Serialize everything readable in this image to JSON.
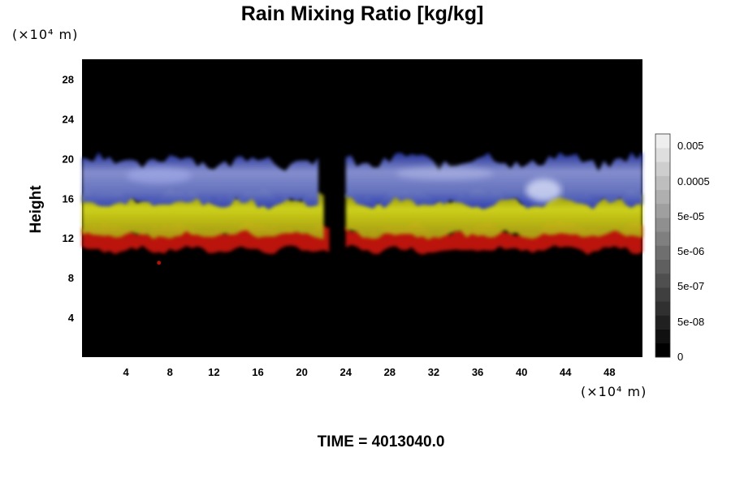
{
  "chart_data": {
    "type": "heatmap",
    "title": "Rain Mixing Ratio [kg/kg]",
    "ylabel": "Height",
    "y_unit": "(×10⁴ m)",
    "x_unit": "(×10⁴ m)",
    "xlim": [
      0,
      51
    ],
    "ylim": [
      0,
      30
    ],
    "x_ticks": [
      4,
      8,
      12,
      16,
      20,
      24,
      28,
      32,
      36,
      40,
      44,
      48
    ],
    "y_ticks": [
      4,
      8,
      12,
      16,
      20,
      24,
      28
    ],
    "layers": [
      {
        "name": "red",
        "color": "#c8140f",
        "y_bottom": 10.8,
        "y_top": 13.0
      },
      {
        "name": "yellow",
        "color": "#c8cc18",
        "y_bottom": 12.3,
        "y_top": 16.3
      },
      {
        "name": "blue-white",
        "color": "#6e7fd6",
        "y_bottom": 15.5,
        "y_top": 19.8
      }
    ],
    "gaps": [
      [
        22.5,
        24.0
      ]
    ],
    "colorbar": {
      "tick_labels": [
        "0.005",
        "0.0005",
        "5e-05",
        "5e-06",
        "5e-07",
        "5e-08",
        "0"
      ],
      "levels": 16
    },
    "footer": "TIME = 4013040.0",
    "grid": false
  }
}
